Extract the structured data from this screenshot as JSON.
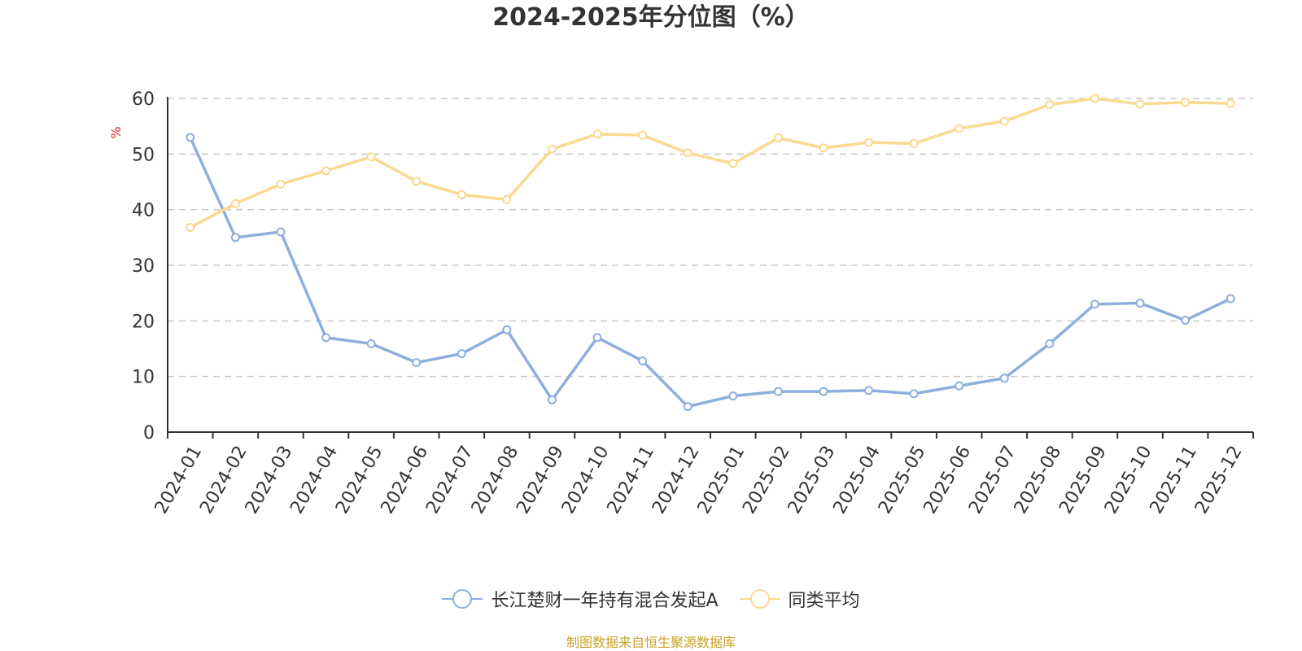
{
  "chart_data": {
    "type": "line",
    "title": "2024-2025年分位图（%）",
    "ylabel": "%",
    "xlabel": "",
    "ylim": [
      0,
      60
    ],
    "yticks": [
      0,
      10,
      20,
      30,
      40,
      50,
      60
    ],
    "grid": true,
    "legend_position": "bottom",
    "categories": [
      "2024-01",
      "2024-02",
      "2024-03",
      "2024-04",
      "2024-05",
      "2024-06",
      "2024-07",
      "2024-08",
      "2024-09",
      "2024-10",
      "2024-11",
      "2024-12",
      "2025-01",
      "2025-02",
      "2025-03",
      "2025-04",
      "2025-05",
      "2025-06",
      "2025-07",
      "2025-08",
      "2025-09",
      "2025-10",
      "2025-11",
      "2025-12"
    ],
    "series": [
      {
        "name": "长江楚财一年持有混合发起A",
        "color": "#8eaedb",
        "values": [
          53.0,
          35.0,
          36.0,
          17.0,
          15.9,
          12.5,
          14.1,
          18.4,
          5.8,
          17.0,
          12.8,
          4.6,
          6.5,
          7.3,
          7.3,
          7.5,
          6.9,
          8.3,
          9.7,
          15.9,
          23.0,
          23.2,
          20.1,
          24.0
        ]
      },
      {
        "name": "同类平均",
        "color": "#fbd98f",
        "values": [
          36.8,
          41.1,
          44.6,
          47.0,
          49.5,
          45.1,
          42.7,
          41.8,
          50.9,
          53.6,
          53.4,
          50.2,
          48.3,
          52.9,
          51.1,
          52.1,
          51.9,
          54.6,
          55.9,
          58.9,
          60.0,
          59.0,
          59.3,
          59.1
        ]
      }
    ]
  },
  "source_text": "制图数据来自恒生聚源数据库"
}
